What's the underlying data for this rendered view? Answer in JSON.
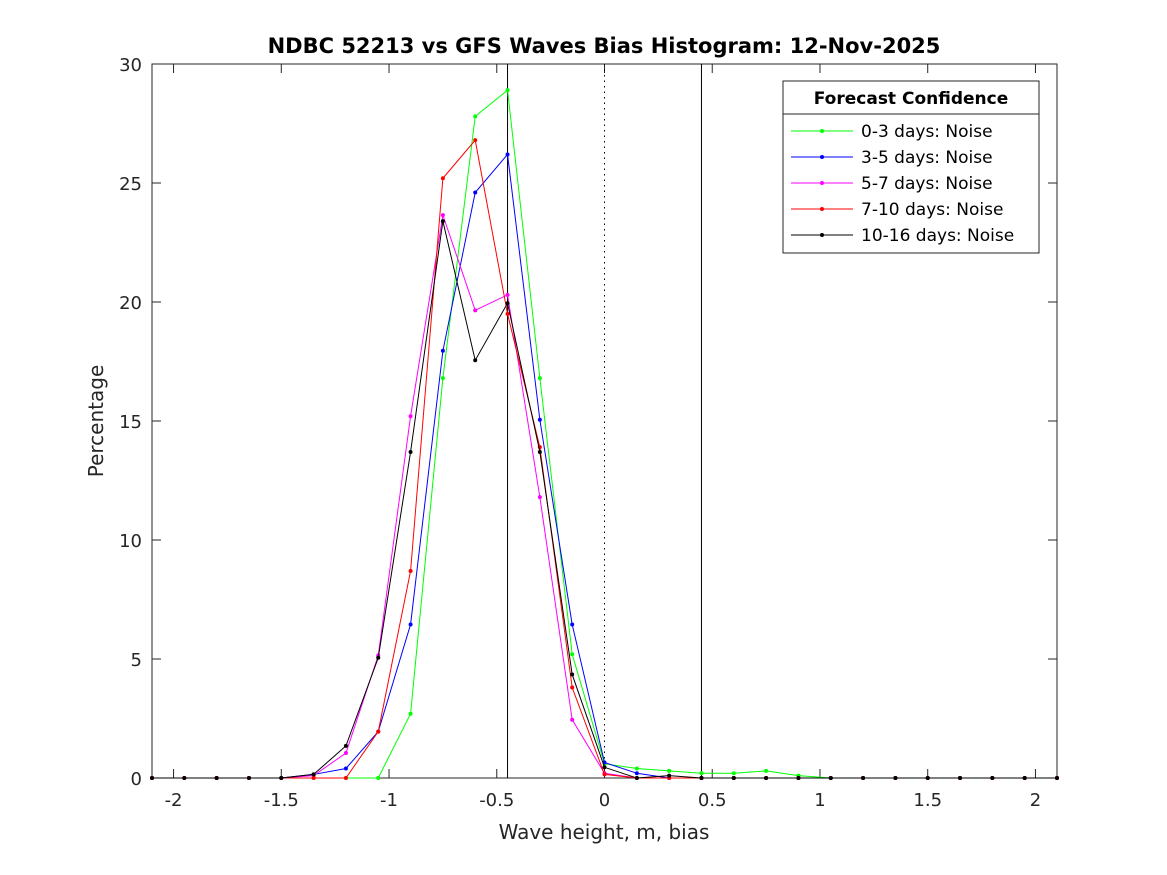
{
  "chart_data": {
    "type": "line",
    "title": "NDBC 52213 vs GFS Waves Bias Histogram: 12-Nov-2025",
    "xlabel": "Wave height, m, bias",
    "ylabel": "Percentage",
    "xlim": [
      -2.1,
      2.1
    ],
    "ylim": [
      0,
      30
    ],
    "xticks": [
      -2,
      -1.5,
      -1,
      -0.5,
      0,
      0.5,
      1,
      1.5,
      2
    ],
    "xtick_labels": [
      "-2",
      "-1.5",
      "-1",
      "-0.5",
      "0",
      "0.5",
      "1",
      "1.5",
      "2"
    ],
    "yticks": [
      0,
      5,
      10,
      15,
      20,
      25,
      30
    ],
    "ytick_labels": [
      "0",
      "5",
      "10",
      "15",
      "20",
      "25",
      "30"
    ],
    "reference_lines": [
      {
        "x": -0.45,
        "style": "solid"
      },
      {
        "x": 0,
        "style": "dotted"
      },
      {
        "x": 0.45,
        "style": "solid"
      }
    ],
    "legend": {
      "title": "Forecast Confidence",
      "location": "top-right"
    },
    "x": [
      -2.1,
      -1.95,
      -1.8,
      -1.65,
      -1.5,
      -1.35,
      -1.2,
      -1.05,
      -0.9,
      -0.75,
      -0.6,
      -0.45,
      -0.3,
      -0.15,
      0,
      0.15,
      0.3,
      0.45,
      0.6,
      0.75,
      0.9,
      1.05,
      1.2,
      1.35,
      1.5,
      1.65,
      1.8,
      1.95,
      2.1
    ],
    "series": [
      {
        "name": "0-3 days: Noise",
        "color": "#00ff00",
        "values": [
          0,
          0,
          0,
          0,
          0,
          0,
          0,
          0,
          2.7,
          16.8,
          27.8,
          28.9,
          16.8,
          5.2,
          0.6,
          0.4,
          0.3,
          0.2,
          0.2,
          0.3,
          0.1,
          0,
          0,
          0,
          0,
          0,
          0,
          0,
          0
        ]
      },
      {
        "name": "3-5 days: Noise",
        "color": "#0000ff",
        "values": [
          0,
          0,
          0,
          0,
          0,
          0.15,
          0.4,
          1.95,
          6.45,
          17.95,
          24.6,
          26.2,
          15.05,
          6.45,
          0.65,
          0.2,
          0,
          0,
          0,
          0,
          0,
          0,
          0,
          0,
          0,
          0,
          0,
          0,
          0
        ]
      },
      {
        "name": "5-7 days: Noise",
        "color": "#ff00ff",
        "values": [
          0,
          0,
          0,
          0,
          0,
          0.1,
          1.05,
          5.15,
          15.2,
          23.65,
          19.65,
          20.3,
          11.8,
          2.45,
          0.2,
          0,
          0,
          0,
          0,
          0,
          0,
          0,
          0,
          0,
          0,
          0,
          0,
          0,
          0
        ]
      },
      {
        "name": "7-10 days: Noise",
        "color": "#ff0000",
        "values": [
          0,
          0,
          0,
          0,
          0,
          0,
          0,
          1.95,
          8.7,
          25.2,
          26.8,
          19.5,
          13.9,
          3.8,
          0.15,
          0,
          0,
          0,
          0,
          0,
          0,
          0,
          0,
          0,
          0,
          0,
          0,
          0,
          0
        ]
      },
      {
        "name": "10-16 days: Noise",
        "color": "#000000",
        "values": [
          0,
          0,
          0,
          0,
          0,
          0.15,
          1.35,
          5.05,
          13.7,
          23.4,
          17.55,
          19.95,
          13.7,
          4.35,
          0.45,
          0,
          0.1,
          0,
          0,
          0,
          0,
          0,
          0,
          0,
          0,
          0,
          0,
          0,
          0
        ]
      }
    ]
  }
}
